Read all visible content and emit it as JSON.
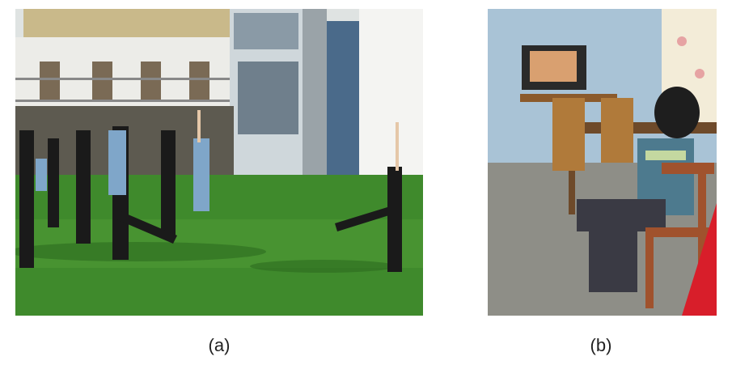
{
  "figure": {
    "panels": [
      {
        "caption": "(a)",
        "image": "photo-people-kicking-exercise-on-lawn"
      },
      {
        "caption": "(b)",
        "image": "photo-child-watching-television-in-room"
      }
    ]
  },
  "colors": {
    "grass": "#3f8a2c",
    "sky_wall": "#a9c3d6",
    "building": "#e9e9e6",
    "chair_wood": "#a0522d",
    "sign_red": "#d81e2a"
  }
}
